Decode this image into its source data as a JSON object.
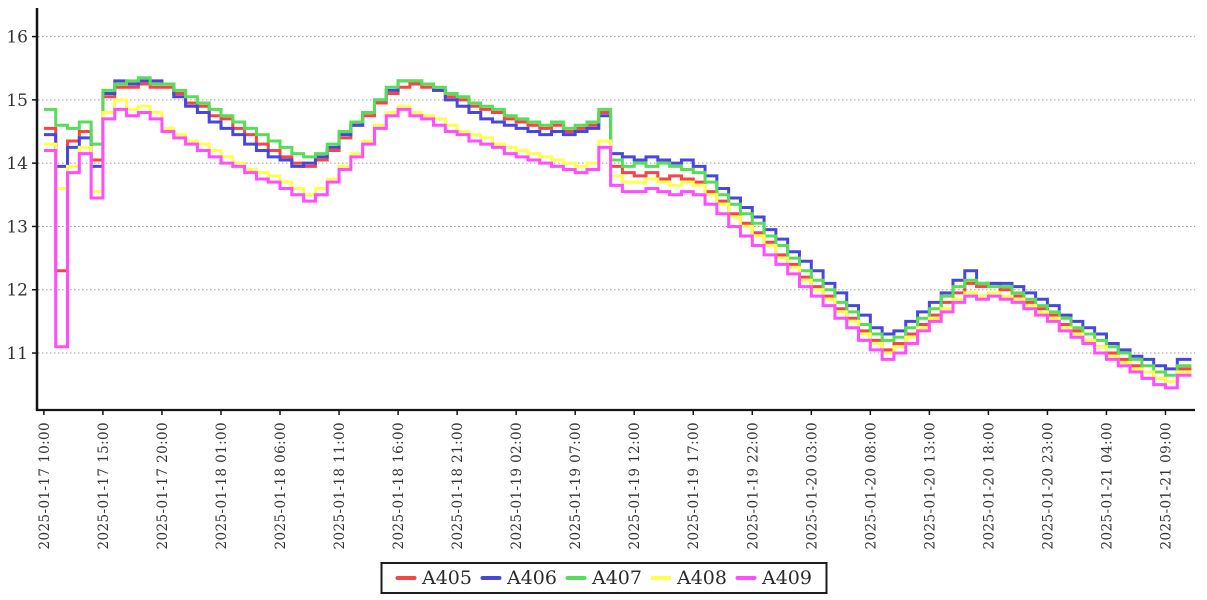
{
  "chart_data": {
    "type": "line",
    "title": "",
    "xlabel": "",
    "ylabel": "",
    "line_style": "step-post",
    "grid": "horizontal-dotted",
    "legend_position": "bottom-center",
    "style_colors": {
      "axis": "#141414",
      "grid": "#999999",
      "text": "#333333",
      "legend_border": "#1c1c1c"
    },
    "x_axis": {
      "start": "2025-01-17 10:00",
      "point_interval_hours": 1,
      "tick_interval_hours": 5,
      "range_hours": [
        -0.5,
        97.5
      ],
      "tick_labels": [
        "2025-01-17 10:00",
        "2025-01-17 15:00",
        "2025-01-17 20:00",
        "2025-01-18 01:00",
        "2025-01-18 06:00",
        "2025-01-18 11:00",
        "2025-01-18 16:00",
        "2025-01-18 21:00",
        "2025-01-19 02:00",
        "2025-01-19 07:00",
        "2025-01-19 12:00",
        "2025-01-19 17:00",
        "2025-01-19 22:00",
        "2025-01-20 03:00",
        "2025-01-20 08:00",
        "2025-01-20 13:00",
        "2025-01-20 18:00",
        "2025-01-20 23:00",
        "2025-01-21 04:00",
        "2025-01-21 09:00"
      ]
    },
    "y_axis": {
      "ticks": [
        11,
        12,
        13,
        14,
        15,
        16
      ],
      "range": [
        10.1,
        16.42
      ]
    },
    "series": [
      {
        "name": "A405",
        "color": "#f54545",
        "values": [
          14.55,
          12.3,
          14.35,
          14.5,
          14.05,
          15.05,
          15.2,
          15.2,
          15.25,
          15.2,
          15.2,
          15.1,
          14.95,
          14.9,
          14.75,
          14.7,
          14.55,
          14.45,
          14.3,
          14.2,
          14.1,
          14.0,
          13.95,
          14.05,
          14.2,
          14.4,
          14.6,
          14.75,
          14.95,
          15.1,
          15.2,
          15.25,
          15.2,
          15.15,
          15.05,
          15.0,
          14.9,
          14.85,
          14.8,
          14.7,
          14.65,
          14.6,
          14.55,
          14.6,
          14.5,
          14.55,
          14.6,
          14.8,
          13.95,
          13.85,
          13.8,
          13.85,
          13.75,
          13.8,
          13.75,
          13.7,
          13.55,
          13.4,
          13.2,
          13.05,
          12.9,
          12.75,
          12.55,
          12.4,
          12.2,
          12.05,
          11.9,
          11.7,
          11.55,
          11.35,
          11.2,
          11.05,
          11.15,
          11.3,
          11.45,
          11.6,
          11.8,
          11.95,
          12.1,
          12.05,
          12.1,
          12.0,
          11.9,
          11.8,
          11.7,
          11.6,
          11.45,
          11.35,
          11.2,
          11.1,
          11.0,
          10.9,
          10.8,
          10.7,
          10.6,
          10.55,
          10.75
        ]
      },
      {
        "name": "A406",
        "color": "#4747dd",
        "values": [
          14.45,
          13.95,
          14.25,
          14.4,
          13.95,
          15.1,
          15.3,
          15.25,
          15.3,
          15.3,
          15.25,
          15.05,
          14.9,
          14.8,
          14.65,
          14.55,
          14.45,
          14.3,
          14.2,
          14.1,
          14.05,
          13.95,
          14.0,
          14.1,
          14.25,
          14.45,
          14.6,
          14.8,
          15.0,
          15.15,
          15.3,
          15.3,
          15.25,
          15.15,
          15.0,
          14.9,
          14.8,
          14.7,
          14.65,
          14.6,
          14.55,
          14.5,
          14.45,
          14.5,
          14.45,
          14.5,
          14.55,
          14.75,
          14.15,
          14.1,
          14.05,
          14.1,
          14.05,
          14.0,
          14.05,
          13.95,
          13.8,
          13.6,
          13.45,
          13.3,
          13.15,
          12.95,
          12.8,
          12.6,
          12.45,
          12.3,
          12.1,
          11.95,
          11.75,
          11.6,
          11.4,
          11.3,
          11.35,
          11.5,
          11.65,
          11.8,
          11.95,
          12.15,
          12.3,
          12.1,
          12.1,
          12.1,
          12.05,
          11.95,
          11.85,
          11.75,
          11.6,
          11.5,
          11.4,
          11.3,
          11.15,
          11.05,
          10.95,
          10.9,
          10.8,
          10.75,
          10.9
        ]
      },
      {
        "name": "A407",
        "color": "#57de57",
        "values": [
          14.85,
          14.6,
          14.55,
          14.65,
          14.3,
          15.15,
          15.25,
          15.3,
          15.35,
          15.25,
          15.25,
          15.15,
          15.05,
          14.95,
          14.85,
          14.75,
          14.65,
          14.55,
          14.45,
          14.35,
          14.25,
          14.15,
          14.1,
          14.15,
          14.3,
          14.5,
          14.65,
          14.8,
          15.0,
          15.2,
          15.3,
          15.3,
          15.25,
          15.2,
          15.1,
          15.05,
          14.95,
          14.9,
          14.85,
          14.75,
          14.7,
          14.65,
          14.6,
          14.65,
          14.55,
          14.6,
          14.65,
          14.85,
          14.05,
          13.95,
          14.0,
          13.95,
          14.0,
          13.95,
          13.9,
          13.85,
          13.7,
          13.5,
          13.35,
          13.2,
          13.05,
          12.85,
          12.7,
          12.5,
          12.3,
          12.15,
          12.0,
          11.8,
          11.65,
          11.45,
          11.3,
          11.2,
          11.25,
          11.4,
          11.55,
          11.7,
          11.9,
          12.05,
          12.15,
          12.1,
          12.05,
          12.05,
          11.95,
          11.85,
          11.75,
          11.65,
          11.55,
          11.4,
          11.3,
          11.2,
          11.1,
          11.0,
          10.9,
          10.8,
          10.7,
          10.65,
          10.8
        ]
      },
      {
        "name": "A408",
        "color": "#ffff4d",
        "values": [
          14.3,
          13.6,
          13.95,
          14.25,
          13.55,
          14.8,
          15.0,
          14.85,
          14.9,
          14.8,
          14.55,
          14.45,
          14.35,
          14.3,
          14.2,
          14.1,
          14.0,
          13.9,
          13.85,
          13.8,
          13.7,
          13.6,
          13.5,
          13.6,
          13.75,
          13.95,
          14.15,
          14.35,
          14.6,
          14.8,
          14.9,
          14.8,
          14.75,
          14.7,
          14.6,
          14.5,
          14.45,
          14.4,
          14.3,
          14.25,
          14.2,
          14.15,
          14.1,
          14.05,
          14.0,
          13.95,
          14.0,
          14.35,
          13.8,
          13.7,
          13.7,
          13.75,
          13.7,
          13.65,
          13.7,
          13.65,
          13.5,
          13.35,
          13.15,
          13.0,
          12.85,
          12.7,
          12.5,
          12.35,
          12.15,
          12.0,
          11.85,
          11.65,
          11.5,
          11.3,
          11.15,
          11.0,
          11.1,
          11.25,
          11.4,
          11.55,
          11.7,
          11.85,
          11.95,
          11.9,
          11.95,
          11.9,
          11.85,
          11.75,
          11.65,
          11.55,
          11.4,
          11.3,
          11.2,
          11.1,
          10.95,
          10.85,
          10.75,
          10.7,
          10.6,
          10.55,
          10.7
        ]
      },
      {
        "name": "A409",
        "color": "#ff4dff",
        "values": [
          14.2,
          11.1,
          13.85,
          14.15,
          13.45,
          14.7,
          14.85,
          14.75,
          14.8,
          14.7,
          14.5,
          14.4,
          14.3,
          14.2,
          14.1,
          14.0,
          13.95,
          13.85,
          13.75,
          13.7,
          13.6,
          13.5,
          13.4,
          13.5,
          13.7,
          13.9,
          14.1,
          14.3,
          14.55,
          14.75,
          14.85,
          14.75,
          14.7,
          14.6,
          14.5,
          14.45,
          14.35,
          14.3,
          14.25,
          14.15,
          14.1,
          14.05,
          14.0,
          13.95,
          13.9,
          13.85,
          13.9,
          14.25,
          13.65,
          13.55,
          13.55,
          13.6,
          13.55,
          13.5,
          13.55,
          13.5,
          13.35,
          13.2,
          13.0,
          12.85,
          12.7,
          12.55,
          12.4,
          12.25,
          12.05,
          11.9,
          11.75,
          11.55,
          11.4,
          11.2,
          11.05,
          10.9,
          11.0,
          11.15,
          11.35,
          11.5,
          11.65,
          11.8,
          11.9,
          11.85,
          11.9,
          11.85,
          11.8,
          11.7,
          11.6,
          11.5,
          11.35,
          11.25,
          11.15,
          11.0,
          10.9,
          10.8,
          10.7,
          10.6,
          10.5,
          10.45,
          10.65
        ]
      }
    ]
  }
}
